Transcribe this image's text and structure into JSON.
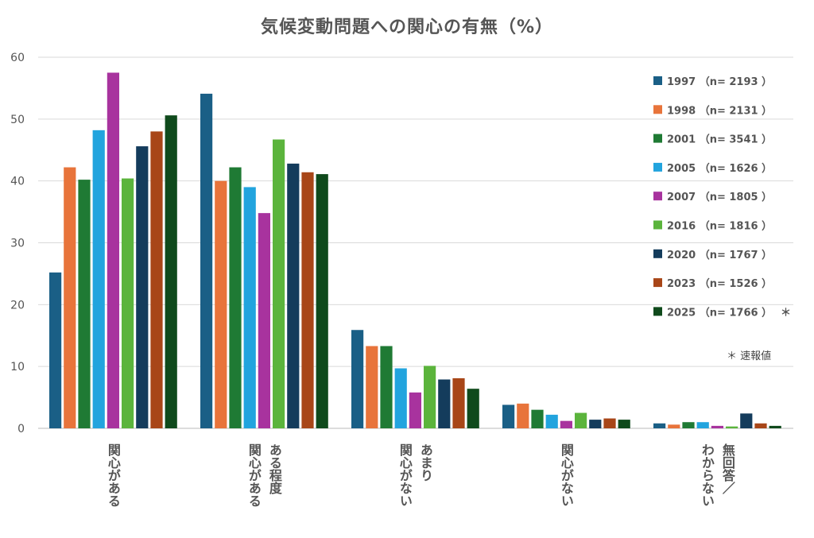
{
  "chart_data": {
    "type": "bar",
    "title": "気候変動問題への関心の有無（%）",
    "ylim": [
      0,
      60
    ],
    "yticks": [
      "0",
      "10",
      "20",
      "30",
      "40",
      "50",
      "60"
    ],
    "grid": true,
    "legend_position": "right",
    "categories": [
      [
        "関心がある"
      ],
      [
        "ある程度",
        "関心がある"
      ],
      [
        "あまり",
        "関心がない"
      ],
      [
        "関心がない"
      ],
      [
        "無回答／",
        "わからない"
      ]
    ],
    "series": [
      {
        "name": "1997 （n= 2193 ）",
        "color": "#1a5f86",
        "values": [
          25.2,
          54.1,
          15.9,
          3.8,
          0.8
        ]
      },
      {
        "name": "1998 （n= 2131 ）",
        "color": "#e8743b",
        "values": [
          42.2,
          40.0,
          13.3,
          4.0,
          0.6
        ]
      },
      {
        "name": "2001 （n= 3541 ）",
        "color": "#1f7a34",
        "values": [
          40.2,
          42.2,
          13.3,
          3.0,
          1.0
        ]
      },
      {
        "name": "2005 （n= 1626 ）",
        "color": "#22a4de",
        "values": [
          48.2,
          39.0,
          9.7,
          2.2,
          1.0
        ]
      },
      {
        "name": "2007 （n= 1805 ）",
        "color": "#a8339e",
        "values": [
          57.5,
          34.8,
          5.8,
          1.2,
          0.4
        ]
      },
      {
        "name": "2016 （n= 1816 ）",
        "color": "#5bb43c",
        "values": [
          40.4,
          46.7,
          10.1,
          2.5,
          0.3
        ]
      },
      {
        "name": "2020 （n= 1767 ）",
        "color": "#143c5c",
        "values": [
          45.6,
          42.8,
          7.9,
          1.4,
          2.4
        ]
      },
      {
        "name": "2023 （n= 1526 ）",
        "color": "#a84618",
        "values": [
          48.0,
          41.4,
          8.1,
          1.6,
          0.8
        ]
      },
      {
        "name": "2025 （n= 1766 ）",
        "marker": "＊",
        "color": "#0f4a1c",
        "values": [
          50.6,
          41.1,
          6.4,
          1.4,
          0.4
        ]
      }
    ],
    "annotation": "＊ 速報値"
  }
}
